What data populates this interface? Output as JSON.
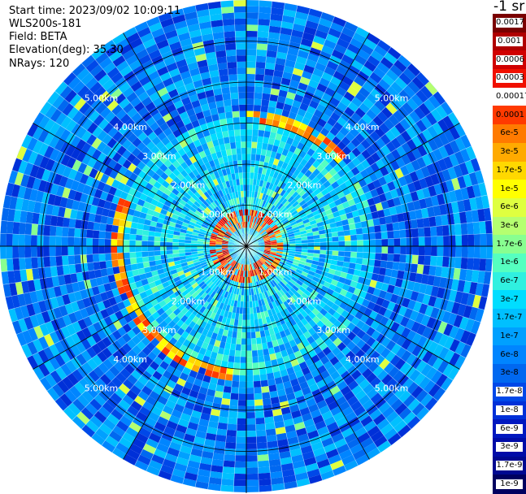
{
  "header": {
    "start_time": "Start time: 2023/09/02 10:09:11",
    "instrument": "WLS200s-181",
    "field": "Field: BETA",
    "elevation": "Elevation(deg): 35.30",
    "nrays": "NRays: 120"
  },
  "colorbar": {
    "title": "-1 sr",
    "levels": [
      {
        "label": "0.0017",
        "color": "#7a0000"
      },
      {
        "label": "0.001",
        "color": "#b00000"
      },
      {
        "label": "0.0006",
        "color": "#d00000"
      },
      {
        "label": "0.0003",
        "color": "#f01000"
      },
      {
        "label": "0.00017",
        "color": "#ffffff"
      },
      {
        "label": "0.0001",
        "color": "#ff3a00"
      },
      {
        "label": "6e-5",
        "color": "#ff7a00"
      },
      {
        "label": "3e-5",
        "color": "#ffaa00"
      },
      {
        "label": "1.7e-5",
        "color": "#ffd800"
      },
      {
        "label": "1e-5",
        "color": "#ffff00"
      },
      {
        "label": "6e-6",
        "color": "#dfff40"
      },
      {
        "label": "3e-6",
        "color": "#b5ff70"
      },
      {
        "label": "1.7e-6",
        "color": "#88ff90"
      },
      {
        "label": "1e-6",
        "color": "#55ffc0"
      },
      {
        "label": "6e-7",
        "color": "#30f0e0"
      },
      {
        "label": "3e-7",
        "color": "#00ddff"
      },
      {
        "label": "1.7e-7",
        "color": "#00c0ff"
      },
      {
        "label": "1e-7",
        "color": "#00a0ff"
      },
      {
        "label": "6e-8",
        "color": "#0085ff"
      },
      {
        "label": "3e-8",
        "color": "#0068f0"
      },
      {
        "label": "1.7e-8",
        "color": "#0048e8"
      },
      {
        "label": "1e-8",
        "color": "#0030d8"
      },
      {
        "label": "6e-9",
        "color": "#0018c0"
      },
      {
        "label": "3e-9",
        "color": "#000ca8"
      },
      {
        "label": "1.7e-9",
        "color": "#000890"
      },
      {
        "label": "1e-9",
        "color": "#000060"
      }
    ]
  },
  "chart_data": {
    "type": "heatmap",
    "projection": "polar (PPI)",
    "field": "BETA",
    "elevation_deg": 35.3,
    "nrays": 120,
    "range_rings_km": [
      1,
      2,
      3,
      4,
      5
    ],
    "ring_labels": [
      "1.00km",
      "2.00km",
      "3.00km",
      "4.00km",
      "5.00km"
    ],
    "max_range_km": 6.0,
    "azimuth_lines_deg": [
      0,
      30,
      60,
      90,
      120,
      150,
      180,
      210,
      240,
      270,
      300,
      330
    ],
    "features": [
      {
        "kind": "high-backscatter ring",
        "range_km": [
          0.5,
          0.9
        ],
        "level": "1e-5 to 0.0001"
      },
      {
        "kind": "arc",
        "range_km": [
          3.0,
          3.3
        ],
        "azimuth_deg": [
          0,
          45
        ],
        "level": "1e-5 to 0.0001"
      },
      {
        "kind": "arc",
        "range_km": [
          3.0,
          3.3
        ],
        "azimuth_deg": [
          185,
          290
        ],
        "level": "1e-5 to 0.0001"
      }
    ],
    "colorscale": "log, 1e-9 to 0.0017 sr-1"
  }
}
